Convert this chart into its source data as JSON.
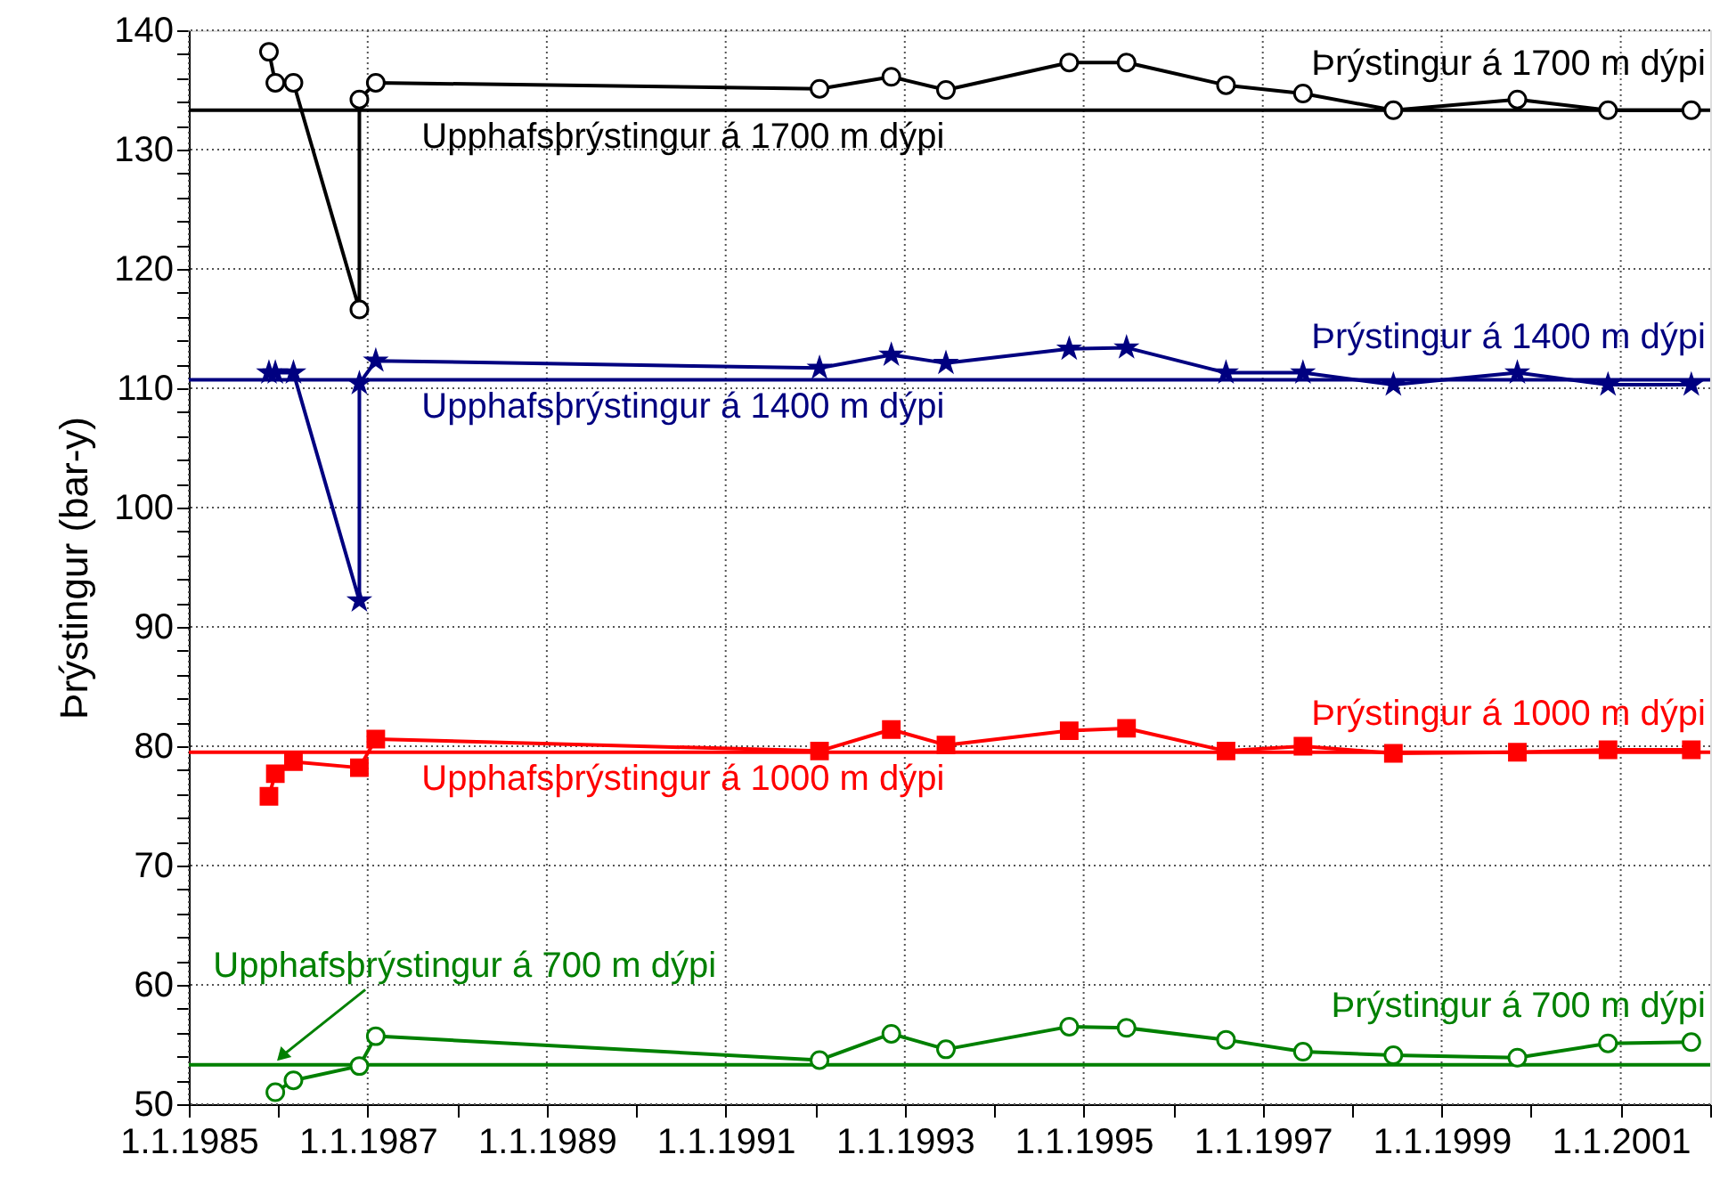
{
  "chart_data": {
    "type": "line",
    "ylabel": "Þrýstingur (bar-y)",
    "xlim": [
      "1985-01-01",
      "2002-01-01"
    ],
    "xticks": [
      {
        "value": "1985-01-01",
        "label": "1.1.1985"
      },
      {
        "value": "1986-01-01",
        "label": null
      },
      {
        "value": "1987-01-01",
        "label": "1.1.1987"
      },
      {
        "value": "1988-01-01",
        "label": null
      },
      {
        "value": "1989-01-01",
        "label": "1.1.1989"
      },
      {
        "value": "1990-01-01",
        "label": null
      },
      {
        "value": "1991-01-01",
        "label": "1.1.1991"
      },
      {
        "value": "1992-01-01",
        "label": null
      },
      {
        "value": "1993-01-01",
        "label": "1.1.1993"
      },
      {
        "value": "1994-01-01",
        "label": null
      },
      {
        "value": "1995-01-01",
        "label": "1.1.1995"
      },
      {
        "value": "1996-01-01",
        "label": null
      },
      {
        "value": "1997-01-01",
        "label": "1.1.1997"
      },
      {
        "value": "1998-01-01",
        "label": null
      },
      {
        "value": "1999-01-01",
        "label": "1.1.1999"
      },
      {
        "value": "2000-01-01",
        "label": null
      },
      {
        "value": "2001-01-01",
        "label": "1.1.2001"
      },
      {
        "value": "2002-01-01",
        "label": null
      }
    ],
    "ylim": [
      50,
      140
    ],
    "yticks": [
      50,
      {
        "value": 52,
        "label": null
      },
      {
        "value": 54,
        "label": null
      },
      {
        "value": 56,
        "label": null
      },
      {
        "value": 58,
        "label": null
      },
      60,
      {
        "value": 62,
        "label": null
      },
      {
        "value": 64,
        "label": null
      },
      {
        "value": 66,
        "label": null
      },
      {
        "value": 68,
        "label": null
      },
      70,
      {
        "value": 72,
        "label": null
      },
      {
        "value": 74,
        "label": null
      },
      {
        "value": 76,
        "label": null
      },
      {
        "value": 78,
        "label": null
      },
      80,
      {
        "value": 82,
        "label": null
      },
      {
        "value": 84,
        "label": null
      },
      {
        "value": 86,
        "label": null
      },
      {
        "value": 88,
        "label": null
      },
      90,
      {
        "value": 92,
        "label": null
      },
      {
        "value": 94,
        "label": null
      },
      {
        "value": 96,
        "label": null
      },
      {
        "value": 98,
        "label": null
      },
      100,
      {
        "value": 102,
        "label": null
      },
      {
        "value": 104,
        "label": null
      },
      {
        "value": 106,
        "label": null
      },
      {
        "value": 108,
        "label": null
      },
      110,
      {
        "value": 112,
        "label": null
      },
      {
        "value": 114,
        "label": null
      },
      {
        "value": 116,
        "label": null
      },
      {
        "value": 118,
        "label": null
      },
      120,
      {
        "value": 122,
        "label": null
      },
      {
        "value": 124,
        "label": null
      },
      {
        "value": 126,
        "label": null
      },
      {
        "value": 128,
        "label": null
      },
      130,
      {
        "value": 132,
        "label": null
      },
      {
        "value": 134,
        "label": null
      },
      {
        "value": 136,
        "label": null
      },
      {
        "value": 138,
        "label": null
      },
      140
    ],
    "grid": true,
    "legend": false,
    "line_style": "solid",
    "series": [
      {
        "name": "Þrýstingur á 1700 m dýpi",
        "color": "#000000",
        "marker": "circle",
        "x": [
          "1985-11-24",
          "1985-12-20",
          "1986-03-04",
          "1986-11-28",
          "1986-11-28",
          "1987-02-03",
          "1992-01-19",
          "1992-11-07",
          "1993-06-18",
          "1994-11-03",
          "1995-06-25",
          "1996-08-04",
          "1997-06-14",
          "1998-06-18",
          "1999-11-06",
          "2000-11-10",
          "2001-10-16"
        ],
        "values": [
          138.2,
          135.6,
          135.6,
          116.6,
          134.2,
          135.6,
          135.1,
          136.1,
          135.0,
          137.3,
          137.3,
          135.4,
          134.7,
          133.3,
          134.2,
          133.3,
          133.3
        ]
      },
      {
        "name": "Þrýstingur á 1400 m dýpi",
        "color": "#000080",
        "marker": "star",
        "x": [
          "1985-11-24",
          "1985-12-20",
          "1986-03-04",
          "1986-11-28",
          "1986-11-28",
          "1987-02-03",
          "1992-01-19",
          "1992-11-07",
          "1993-06-18",
          "1994-11-03",
          "1995-06-25",
          "1996-08-04",
          "1997-06-14",
          "1998-06-18",
          "1999-11-06",
          "2000-11-10",
          "2001-10-16"
        ],
        "values": [
          111.3,
          111.3,
          111.3,
          92.2,
          110.4,
          112.3,
          111.7,
          112.8,
          112.1,
          113.3,
          113.4,
          111.3,
          111.3,
          110.3,
          111.3,
          110.3,
          110.3
        ]
      },
      {
        "name": "Þrýstingur á 1000 m dýpi",
        "color": "#ff0000",
        "marker": "square",
        "x": [
          "1985-11-24",
          "1985-12-20",
          "1986-03-04",
          "1986-11-28",
          "1987-02-03",
          "1992-01-19",
          "1992-11-07",
          "1993-06-18",
          "1994-11-03",
          "1995-06-25",
          "1996-08-04",
          "1997-06-14",
          "1998-06-18",
          "1999-11-06",
          "2000-11-10",
          "2001-10-16"
        ],
        "values": [
          75.8,
          77.7,
          78.7,
          78.2,
          80.6,
          79.6,
          81.4,
          80.1,
          81.3,
          81.5,
          79.6,
          80.0,
          79.4,
          79.5,
          79.7,
          79.7
        ]
      },
      {
        "name": "Þrýstingur á 700 m dýpi",
        "color": "#008000",
        "marker": "circle",
        "x": [
          "1985-12-20",
          "1986-03-04",
          "1986-11-28",
          "1987-02-03",
          "1992-01-19",
          "1992-11-07",
          "1993-06-18",
          "1994-11-03",
          "1995-06-25",
          "1996-08-04",
          "1997-06-14",
          "1998-06-18",
          "1999-11-06",
          "2000-11-10",
          "2001-10-16"
        ],
        "values": [
          51.0,
          52.0,
          53.2,
          55.7,
          53.7,
          55.9,
          54.6,
          56.5,
          56.4,
          55.4,
          54.4,
          54.1,
          53.9,
          55.1,
          55.2
        ]
      }
    ],
    "ref_lines": [
      {
        "axis": "y",
        "value": 133.3,
        "label": "Upphafsþrýstingur á 1700 m dýpi",
        "color": "#000000"
      },
      {
        "axis": "y",
        "value": 110.7,
        "label": "Upphafsþrýstingur á 1400 m dýpi",
        "color": "#000080"
      },
      {
        "axis": "y",
        "value": 79.5,
        "label": "Upphafsþrýstingur á 1000 m dýpi",
        "color": "#ff0000"
      },
      {
        "axis": "y",
        "value": 53.3,
        "label": "Upphafsþrýstingur á 700 m dýpi",
        "color": "#008000"
      }
    ]
  }
}
